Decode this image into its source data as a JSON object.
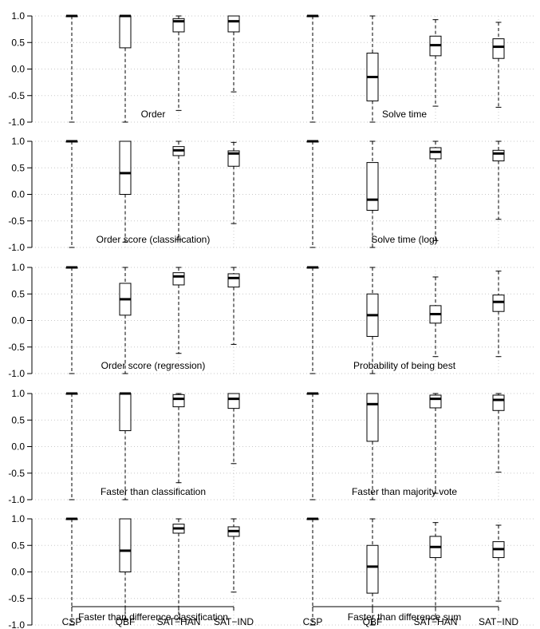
{
  "chart_data": {
    "type": "boxplot",
    "categories": [
      "CSP",
      "QBF",
      "SAT−HAN",
      "SAT−IND"
    ],
    "ylim": [
      -1.0,
      1.0
    ],
    "yticks": [
      "1.0",
      "0.5",
      "0.0",
      "-0.5",
      "-1.0"
    ],
    "grid": true,
    "rows": 5,
    "cols": 2,
    "panels": [
      {
        "title": "Order",
        "boxes": [
          {
            "min": -1.0,
            "q1": 1.0,
            "median": 1.0,
            "q3": 1.0,
            "max": 1.0
          },
          {
            "min": -1.0,
            "q1": 0.4,
            "median": 1.0,
            "q3": 1.0,
            "max": 1.0
          },
          {
            "min": -0.78,
            "q1": 0.7,
            "median": 0.9,
            "q3": 0.95,
            "max": 1.0
          },
          {
            "min": -0.43,
            "q1": 0.7,
            "median": 0.9,
            "q3": 1.0,
            "max": 1.0
          }
        ]
      },
      {
        "title": "Solve time",
        "boxes": [
          {
            "min": -1.0,
            "q1": 1.0,
            "median": 1.0,
            "q3": 1.0,
            "max": 1.0
          },
          {
            "min": -1.0,
            "q1": -0.6,
            "median": -0.15,
            "q3": 0.3,
            "max": 1.0
          },
          {
            "min": -0.7,
            "q1": 0.25,
            "median": 0.45,
            "q3": 0.62,
            "max": 0.93
          },
          {
            "min": -0.72,
            "q1": 0.2,
            "median": 0.42,
            "q3": 0.57,
            "max": 0.88
          }
        ]
      },
      {
        "title": "Order score (classification)",
        "boxes": [
          {
            "min": -1.0,
            "q1": 1.0,
            "median": 1.0,
            "q3": 1.0,
            "max": 1.0
          },
          {
            "min": -0.9,
            "q1": 0.0,
            "median": 0.4,
            "q3": 1.0,
            "max": 1.0
          },
          {
            "min": -0.85,
            "q1": 0.73,
            "median": 0.83,
            "q3": 0.9,
            "max": 1.0
          },
          {
            "min": -0.55,
            "q1": 0.53,
            "median": 0.77,
            "q3": 0.82,
            "max": 0.98
          }
        ]
      },
      {
        "title": "Solve time (log)",
        "boxes": [
          {
            "min": -1.0,
            "q1": 1.0,
            "median": 1.0,
            "q3": 1.0,
            "max": 1.0
          },
          {
            "min": -1.0,
            "q1": -0.3,
            "median": -0.1,
            "q3": 0.6,
            "max": 1.0
          },
          {
            "min": -0.87,
            "q1": 0.67,
            "median": 0.8,
            "q3": 0.88,
            "max": 1.0
          },
          {
            "min": -0.47,
            "q1": 0.63,
            "median": 0.77,
            "q3": 0.83,
            "max": 1.0
          }
        ]
      },
      {
        "title": "Order score (regression)",
        "boxes": [
          {
            "min": -1.0,
            "q1": 1.0,
            "median": 1.0,
            "q3": 1.0,
            "max": 1.0
          },
          {
            "min": -1.0,
            "q1": 0.1,
            "median": 0.4,
            "q3": 0.7,
            "max": 1.0
          },
          {
            "min": -0.62,
            "q1": 0.67,
            "median": 0.83,
            "q3": 0.9,
            "max": 1.0
          },
          {
            "min": -0.45,
            "q1": 0.63,
            "median": 0.8,
            "q3": 0.88,
            "max": 1.0
          }
        ]
      },
      {
        "title": "Probability of being best",
        "boxes": [
          {
            "min": -1.0,
            "q1": 1.0,
            "median": 1.0,
            "q3": 1.0,
            "max": 1.0
          },
          {
            "min": -1.0,
            "q1": -0.3,
            "median": 0.1,
            "q3": 0.5,
            "max": 1.0
          },
          {
            "min": -0.68,
            "q1": -0.05,
            "median": 0.12,
            "q3": 0.28,
            "max": 0.82
          },
          {
            "min": -0.68,
            "q1": 0.17,
            "median": 0.35,
            "q3": 0.48,
            "max": 0.93
          }
        ]
      },
      {
        "title": "Faster than classification",
        "boxes": [
          {
            "min": -1.0,
            "q1": 1.0,
            "median": 1.0,
            "q3": 1.0,
            "max": 1.0
          },
          {
            "min": -1.0,
            "q1": 0.3,
            "median": 1.0,
            "q3": 1.0,
            "max": 1.0
          },
          {
            "min": -0.68,
            "q1": 0.75,
            "median": 0.9,
            "q3": 0.98,
            "max": 1.0
          },
          {
            "min": -0.32,
            "q1": 0.72,
            "median": 0.9,
            "q3": 1.0,
            "max": 1.0
          }
        ]
      },
      {
        "title": "Faster than majority vote",
        "boxes": [
          {
            "min": -1.0,
            "q1": 1.0,
            "median": 1.0,
            "q3": 1.0,
            "max": 1.0
          },
          {
            "min": -1.0,
            "q1": 0.1,
            "median": 0.8,
            "q3": 1.0,
            "max": 1.0
          },
          {
            "min": -0.88,
            "q1": 0.73,
            "median": 0.9,
            "q3": 0.97,
            "max": 1.0
          },
          {
            "min": -0.48,
            "q1": 0.68,
            "median": 0.88,
            "q3": 0.97,
            "max": 1.0
          }
        ]
      },
      {
        "title": "Faster than difference classification",
        "boxes": [
          {
            "min": -1.0,
            "q1": 1.0,
            "median": 1.0,
            "q3": 1.0,
            "max": 1.0
          },
          {
            "min": -0.9,
            "q1": 0.0,
            "median": 0.4,
            "q3": 1.0,
            "max": 1.0
          },
          {
            "min": -0.88,
            "q1": 0.73,
            "median": 0.82,
            "q3": 0.9,
            "max": 1.0
          },
          {
            "min": -0.38,
            "q1": 0.67,
            "median": 0.77,
            "q3": 0.85,
            "max": 1.0
          }
        ]
      },
      {
        "title": "Faster than difference sum",
        "boxes": [
          {
            "min": -1.0,
            "q1": 1.0,
            "median": 1.0,
            "q3": 1.0,
            "max": 1.0
          },
          {
            "min": -1.0,
            "q1": -0.4,
            "median": 0.1,
            "q3": 0.5,
            "max": 1.0
          },
          {
            "min": -0.88,
            "q1": 0.27,
            "median": 0.47,
            "q3": 0.67,
            "max": 0.93
          },
          {
            "min": -0.55,
            "q1": 0.27,
            "median": 0.43,
            "q3": 0.57,
            "max": 0.88
          }
        ]
      }
    ]
  }
}
